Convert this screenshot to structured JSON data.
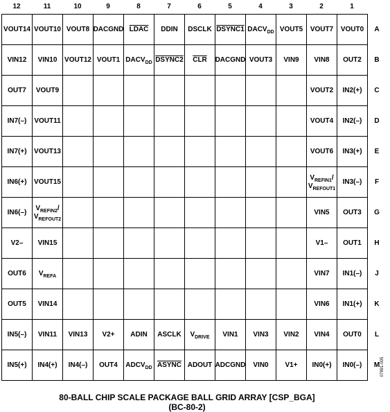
{
  "columns": [
    "12",
    "11",
    "10",
    "9",
    "8",
    "7",
    "6",
    "5",
    "4",
    "3",
    "2",
    "1"
  ],
  "rows": [
    {
      "label": "A",
      "cells": [
        "VOUT14",
        "VOUT10",
        "VOUT8",
        "DACGND",
        {
          "lines": [
            [
              {
                "overline": "LDAC"
              }
            ]
          ]
        },
        "DDIN",
        "DSCLK",
        {
          "lines": [
            [
              {
                "overline": "DSYNC1"
              }
            ]
          ]
        },
        {
          "lines": [
            [
              "DACV",
              {
                "sub": "DD"
              }
            ]
          ]
        },
        "VOUT5",
        "VOUT7",
        "VOUT0"
      ]
    },
    {
      "label": "B",
      "cells": [
        "VIN12",
        "VIN10",
        "VOUT12",
        "VOUT1",
        {
          "lines": [
            [
              "DACV",
              {
                "sub": "DD"
              }
            ]
          ]
        },
        {
          "lines": [
            [
              {
                "overline": "DSYNC2"
              }
            ]
          ]
        },
        {
          "lines": [
            [
              {
                "overline": "CLR"
              }
            ]
          ]
        },
        "DACGND",
        "VOUT3",
        "VIN9",
        "VIN8",
        "OUT2"
      ]
    },
    {
      "label": "C",
      "cells": [
        "OUT7",
        "VOUT9",
        null,
        null,
        null,
        null,
        null,
        null,
        null,
        null,
        "VOUT2",
        "IN2(+)"
      ]
    },
    {
      "label": "D",
      "cells": [
        "IN7(–)",
        "VOUT11",
        null,
        null,
        null,
        null,
        null,
        null,
        null,
        null,
        "VOUT4",
        "IN2(–)"
      ]
    },
    {
      "label": "E",
      "cells": [
        "IN7(+)",
        "VOUT13",
        null,
        null,
        null,
        null,
        null,
        null,
        null,
        null,
        "VOUT6",
        "IN3(+)"
      ]
    },
    {
      "label": "F",
      "cells": [
        "IN6(+)",
        "VOUT15",
        null,
        null,
        null,
        null,
        null,
        null,
        null,
        null,
        {
          "lines": [
            [
              "V",
              {
                "sub": "REFIN1"
              },
              "/"
            ],
            [
              "V",
              {
                "sub": "REFOUT1"
              }
            ]
          ]
        },
        "IN3(–)"
      ]
    },
    {
      "label": "G",
      "cells": [
        "IN6(–)",
        {
          "lines": [
            [
              "V",
              {
                "sub": "REFIN2"
              },
              "/"
            ],
            [
              "V",
              {
                "sub": "REFOUT2"
              }
            ]
          ]
        },
        null,
        null,
        null,
        null,
        null,
        null,
        null,
        null,
        "VIN5",
        "OUT3"
      ]
    },
    {
      "label": "H",
      "cells": [
        "V2–",
        "VIN15",
        null,
        null,
        null,
        null,
        null,
        null,
        null,
        null,
        "V1–",
        "OUT1"
      ]
    },
    {
      "label": "J",
      "cells": [
        "OUT6",
        {
          "lines": [
            [
              "V",
              {
                "sub": "REFA"
              }
            ]
          ]
        },
        null,
        null,
        null,
        null,
        null,
        null,
        null,
        null,
        "VIN7",
        "IN1(–)"
      ]
    },
    {
      "label": "K",
      "cells": [
        "OUT5",
        "VIN14",
        null,
        null,
        null,
        null,
        null,
        null,
        null,
        null,
        "VIN6",
        "IN1(+)"
      ]
    },
    {
      "label": "L",
      "cells": [
        "IN5(–)",
        "VIN11",
        "VIN13",
        "V2+",
        "ADIN",
        "ASCLK",
        {
          "lines": [
            [
              "V",
              {
                "sub": "DRIVE"
              }
            ]
          ]
        },
        "VIN1",
        "VIN3",
        "VIN2",
        "VIN4",
        "OUT0"
      ]
    },
    {
      "label": "M",
      "cells": [
        "IN5(+)",
        "IN4(+)",
        "IN4(–)",
        "OUT4",
        {
          "lines": [
            [
              "ADCV",
              {
                "sub": "DD"
              }
            ]
          ]
        },
        {
          "lines": [
            [
              {
                "overline": "ASYNC"
              }
            ]
          ]
        },
        "ADOUT",
        "ADCGND",
        "VIN0",
        "V1+",
        "IN0(+)",
        "IN0(–)"
      ]
    }
  ],
  "caption": [
    "80-BALL CHIP SCALE PACKAGE BALL GRID ARRAY [CSP_BGA]",
    "(BC-80-2)"
  ],
  "figure_code": "07891-005"
}
